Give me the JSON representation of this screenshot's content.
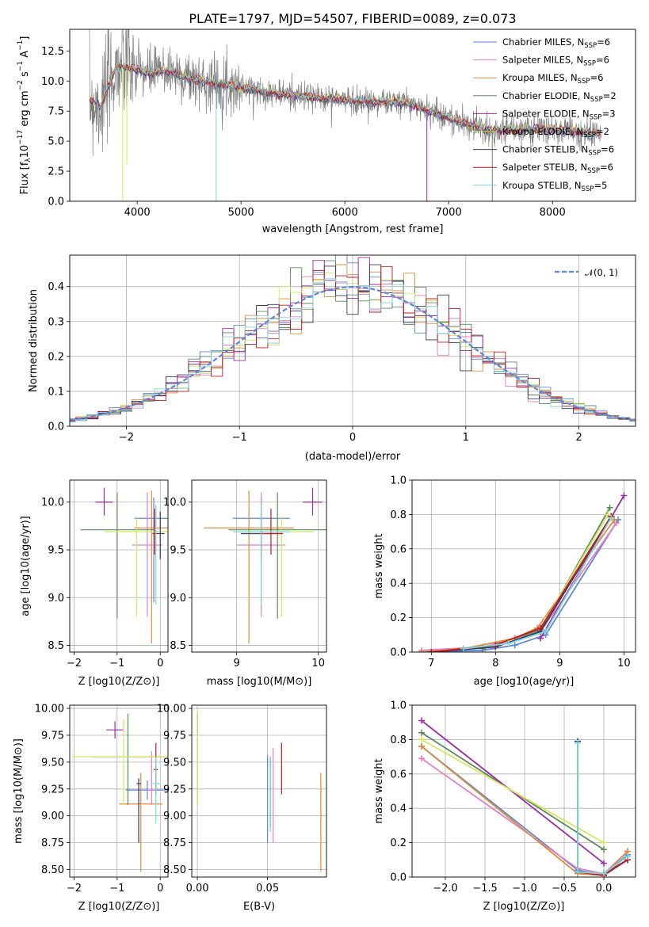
{
  "figure": {
    "title": "PLATE=1797, MJD=54507, FIBERID=0089, z=0.073"
  },
  "colors": {
    "series": [
      "#5b87d6",
      "#e27fc4",
      "#e08c3a",
      "#5c8a5c",
      "#9b2ba8",
      "#d3e85a",
      "#3a3a5a",
      "#c9181c",
      "#7dd5dc"
    ],
    "data": "#808080",
    "normal": "#5b87d6"
  },
  "legend": [
    {
      "label": "Chabrier MILES, N",
      "sub": "SSP",
      "suffix": "=6"
    },
    {
      "label": "Salpeter MILES, N",
      "sub": "SSP",
      "suffix": "=6"
    },
    {
      "label": "Kroupa MILES, N",
      "sub": "SSP",
      "suffix": "=6"
    },
    {
      "label": "Chabrier ELODIE, N",
      "sub": "SSP",
      "suffix": "=2"
    },
    {
      "label": "Salpeter ELODIE, N",
      "sub": "SSP",
      "suffix": "=3"
    },
    {
      "label": "Kroupa ELODIE, N",
      "sub": "SSP",
      "suffix": "=2"
    },
    {
      "label": "Chabrier STELIB, N",
      "sub": "SSP",
      "suffix": "=6"
    },
    {
      "label": "Salpeter STELIB, N",
      "sub": "SSP",
      "suffix": "=6"
    },
    {
      "label": "Kroupa STELIB, N",
      "sub": "SSP",
      "suffix": "=5"
    }
  ],
  "chart_data": [
    {
      "id": "spectrum",
      "type": "line",
      "xlabel": "wavelength [Angstrom, rest frame]",
      "ylabel": "Flux [f",
      "ylabel_parts": {
        "a": "Flux [f",
        "sub": "λ",
        "b": "10",
        "sup": "−17",
        "c": " erg cm",
        "sup2": "−2",
        "d": " s",
        "sup3": "−1",
        "e": " A",
        "sup4": "−1",
        "f": "]"
      },
      "xlim": [
        3350,
        8800
      ],
      "ylim": [
        0,
        14.3
      ],
      "xticks": [
        4000,
        5000,
        6000,
        7000,
        8000
      ],
      "yticks": [
        0.0,
        2.5,
        5.0,
        7.5,
        10.0,
        12.5
      ],
      "ytick_labels": [
        "0.0",
        "2.5",
        "5.0",
        "7.5",
        "10.0",
        "12.5"
      ],
      "model_trend": [
        [
          3540,
          8.4
        ],
        [
          3650,
          7.9
        ],
        [
          3800,
          11.2
        ],
        [
          3950,
          11.1
        ],
        [
          4100,
          10.6
        ],
        [
          4300,
          10.9
        ],
        [
          4500,
          10.2
        ],
        [
          4700,
          9.9
        ],
        [
          5000,
          9.5
        ],
        [
          5300,
          9.0
        ],
        [
          5600,
          8.7
        ],
        [
          5900,
          8.5
        ],
        [
          6200,
          8.3
        ],
        [
          6600,
          8.2
        ],
        [
          6800,
          7.6
        ],
        [
          7100,
          6.6
        ],
        [
          7400,
          5.9
        ],
        [
          7800,
          6.0
        ],
        [
          8200,
          5.8
        ],
        [
          8470,
          5.6
        ]
      ],
      "data_range": [
        3540,
        8470
      ]
    },
    {
      "id": "residuals",
      "type": "histogram",
      "xlabel": "(data-model)/error",
      "ylabel": "Normed distribution",
      "xlim": [
        -2.5,
        2.5
      ],
      "ylim": [
        0,
        0.49
      ],
      "xticks": [
        -2,
        -1,
        0,
        1,
        2
      ],
      "xtick_labels": [
        "−2",
        "−1",
        "0",
        "1",
        "2"
      ],
      "yticks": [
        0.0,
        0.1,
        0.2,
        0.3,
        0.4
      ],
      "ytick_labels": [
        "0.0",
        "0.1",
        "0.2",
        "0.3",
        "0.4"
      ],
      "reference": {
        "name": "𝒩(0, 1)",
        "mu": 0,
        "sigma": 1
      },
      "bin_width": 0.1
    },
    {
      "id": "age-vs-Z",
      "type": "scatter",
      "xlabel": "Z [log10(Z/Z⊙)]",
      "ylabel": "age  [log10(age/yr)]",
      "xlim": [
        -2.1,
        0.18
      ],
      "ylim": [
        8.43,
        10.23
      ],
      "xticks": [
        -2,
        -1,
        0
      ],
      "xtick_labels": [
        "−2",
        "−1",
        "0"
      ],
      "yticks": [
        8.5,
        9.0,
        9.5,
        10.0
      ],
      "ytick_labels": [
        "8.5",
        "9.0",
        "9.5",
        "10.0"
      ],
      "points": [
        {
          "x": -0.15,
          "xerr": 0.45,
          "y": 9.83,
          "ylo": 8.95,
          "yhi": 10.05
        },
        {
          "x": -0.3,
          "xerr": 0.35,
          "y": 9.55,
          "ylo": 8.8,
          "yhi": 10.1
        },
        {
          "x": -0.2,
          "xerr": 0.4,
          "y": 9.73,
          "ylo": 8.52,
          "yhi": 10.12
        },
        {
          "x": -1.0,
          "xerr": 0.85,
          "y": 9.71,
          "ylo": 8.78,
          "yhi": 10.1
        },
        {
          "x": -1.3,
          "xerr": 0.2,
          "y": 10.0,
          "ylo": 9.86,
          "yhi": 10.15
        },
        {
          "x": -0.55,
          "xerr": 0.75,
          "y": 9.69,
          "ylo": 8.8,
          "yhi": 9.85
        },
        {
          "x": 0.0,
          "xerr": 0.1,
          "y": 9.67,
          "ylo": 9.4,
          "yhi": 9.9
        },
        {
          "x": -0.13,
          "xerr": 0.05,
          "y": 9.67,
          "ylo": 9.45,
          "yhi": 9.93
        },
        {
          "x": -0.1,
          "xerr": 0.05,
          "y": 9.69,
          "ylo": 8.93,
          "yhi": 9.97
        }
      ]
    },
    {
      "id": "age-vs-mass",
      "type": "scatter",
      "xlabel": "mass [log10(M/M⊙)]",
      "ylabel": "",
      "xlim": [
        8.45,
        10.1
      ],
      "ylim": [
        8.43,
        10.23
      ],
      "xticks": [
        9,
        10
      ],
      "xtick_labels": [
        "9",
        "10"
      ],
      "yticks": [
        8.5,
        9.0,
        9.5,
        10.0
      ],
      "ytick_labels": [
        "8.5",
        "9.0",
        "9.5",
        "10.0"
      ],
      "points": [
        {
          "x": 9.3,
          "xerr": 0.35,
          "y": 9.83,
          "ylo": 8.95,
          "yhi": 10.05
        },
        {
          "x": 9.3,
          "xerr": 0.3,
          "y": 9.55,
          "ylo": 8.8,
          "yhi": 10.1
        },
        {
          "x": 9.15,
          "xerr": 0.55,
          "y": 9.73,
          "ylo": 8.52,
          "yhi": 10.12
        },
        {
          "x": 9.5,
          "xerr": 0.6,
          "y": 9.71,
          "ylo": 8.78,
          "yhi": 10.1
        },
        {
          "x": 9.93,
          "xerr": 0.12,
          "y": 10.0,
          "ylo": 9.86,
          "yhi": 10.15
        },
        {
          "x": 9.55,
          "xerr": 0.4,
          "y": 9.69,
          "ylo": 8.8,
          "yhi": 9.85
        },
        {
          "x": 9.3,
          "xerr": 0.25,
          "y": 9.67,
          "ylo": 9.4,
          "yhi": 9.9
        },
        {
          "x": 9.42,
          "xerr": 0.15,
          "y": 9.67,
          "ylo": 9.45,
          "yhi": 9.93
        },
        {
          "x": 9.3,
          "xerr": 0.35,
          "y": 9.69,
          "ylo": 8.93,
          "yhi": 9.97
        }
      ]
    },
    {
      "id": "weight-vs-age",
      "type": "line",
      "xlabel": "age  [log10(age/yr)]",
      "ylabel": "mass weight",
      "xlim": [
        6.7,
        10.18
      ],
      "ylim": [
        0,
        1.0
      ],
      "xticks": [
        7,
        8,
        9,
        10
      ],
      "xtick_labels": [
        "7",
        "8",
        "9",
        "10"
      ],
      "yticks": [
        0.0,
        0.2,
        0.4,
        0.6,
        0.8,
        1.0
      ],
      "ytick_labels": [
        "0.0",
        "0.2",
        "0.4",
        "0.6",
        "0.8",
        "1.0"
      ],
      "series": [
        {
          "x": [
            6.85,
            7.8,
            8.3,
            8.78,
            9.91
          ],
          "y": [
            0.0,
            0.01,
            0.04,
            0.1,
            0.77
          ]
        },
        {
          "x": [
            6.85,
            7.8,
            8.3,
            8.7,
            9.88
          ],
          "y": [
            0.01,
            0.03,
            0.08,
            0.12,
            0.75
          ]
        },
        {
          "x": [
            6.85,
            7.5,
            8.3,
            8.65,
            9.85
          ],
          "y": [
            0.0,
            0.02,
            0.08,
            0.14,
            0.77
          ]
        },
        {
          "x": [
            7.8,
            8.7,
            9.78
          ],
          "y": [
            0.02,
            0.13,
            0.84
          ]
        },
        {
          "x": [
            8.7,
            10.0
          ],
          "y": [
            0.08,
            0.91
          ]
        },
        {
          "x": [
            8.8,
            9.75
          ],
          "y": [
            0.2,
            0.8
          ]
        },
        {
          "x": [
            7.0,
            8.0,
            8.7,
            9.8
          ],
          "y": [
            0.0,
            0.03,
            0.12,
            0.79
          ]
        },
        {
          "x": [
            7.0,
            8.0,
            8.7,
            9.8
          ],
          "y": [
            0.0,
            0.04,
            0.14,
            0.79
          ]
        },
        {
          "x": [
            7.5,
            8.2,
            8.78,
            9.8
          ],
          "y": [
            0.02,
            0.05,
            0.12,
            0.78
          ]
        }
      ]
    },
    {
      "id": "mass-vs-Z",
      "type": "scatter",
      "xlabel": "Z [log10(Z/Z⊙)]",
      "ylabel": "mass [log10(M/M⊙)]",
      "xlim": [
        -2.1,
        0.18
      ],
      "ylim": [
        8.43,
        10.03
      ],
      "xticks": [
        -2,
        -1,
        0
      ],
      "xtick_labels": [
        "−2",
        "−1",
        "0"
      ],
      "yticks": [
        8.5,
        8.75,
        9.0,
        9.25,
        9.5,
        9.75,
        10.0
      ],
      "ytick_labels": [
        "8.50",
        "8.75",
        "9.00",
        "9.25",
        "9.50",
        "9.75",
        "10.00"
      ],
      "points": [
        {
          "x": -0.3,
          "xerr": 0.5,
          "y": 9.24,
          "ylo": 9.15,
          "yhi": 9.33
        },
        {
          "x": -0.2,
          "xerr": 0.1,
          "y": 9.24,
          "ylo": 9.1,
          "yhi": 9.6
        },
        {
          "x": -0.45,
          "xerr": 0.5,
          "y": 9.11,
          "ylo": 8.48,
          "yhi": 9.4
        },
        {
          "x": -0.75,
          "xerr": 0.85,
          "y": 9.55,
          "ylo": 9.1,
          "yhi": 9.95
        },
        {
          "x": -1.05,
          "xerr": 0.2,
          "y": 9.8,
          "ylo": 9.72,
          "yhi": 9.88
        },
        {
          "x": -0.85,
          "xerr": 1.2,
          "y": 9.55,
          "ylo": 9.1,
          "yhi": 9.9
        },
        {
          "x": -0.5,
          "xerr": 0.05,
          "y": 9.3,
          "ylo": 8.75,
          "yhi": 9.35
        },
        {
          "x": -0.1,
          "xerr": 0.05,
          "y": 9.43,
          "ylo": 9.2,
          "yhi": 9.68
        },
        {
          "x": -0.1,
          "xerr": 0.1,
          "y": 9.3,
          "ylo": 8.93,
          "yhi": 9.55
        }
      ]
    },
    {
      "id": "mass-vs-EBV",
      "type": "scatter",
      "xlabel": "E(B-V)",
      "ylabel": "",
      "xlim": [
        -0.004,
        0.092
      ],
      "ylim": [
        8.43,
        10.03
      ],
      "xticks": [
        0.0,
        0.05
      ],
      "xtick_labels": [
        "0.00",
        "0.05"
      ],
      "yticks": [
        8.5,
        8.75,
        9.0,
        9.25,
        9.5,
        9.75,
        10.0
      ],
      "ytick_labels": [
        "8.50",
        "8.75",
        "9.00",
        "9.25",
        "9.50",
        "9.75",
        "10.00"
      ],
      "points": [
        {
          "x": 0.05,
          "y": 9.2,
          "ylo": 8.75,
          "yhi": 9.57
        },
        {
          "x": 0.054,
          "y": 9.2,
          "ylo": 8.75,
          "yhi": 9.63
        },
        {
          "x": 0.088,
          "y": 8.95,
          "ylo": 8.48,
          "yhi": 9.4
        },
        {
          "x": 0.0,
          "y": 9.55,
          "ylo": 9.1,
          "yhi": 9.95
        },
        {
          "x": 0.0,
          "y": 9.85,
          "ylo": 9.75,
          "yhi": 9.95
        },
        {
          "x": 0.0,
          "y": 9.55,
          "ylo": 9.1,
          "yhi": 9.99
        },
        {
          "x": 0.052,
          "y": 9.2,
          "ylo": 8.9,
          "yhi": 9.55
        },
        {
          "x": 0.06,
          "y": 9.43,
          "ylo": 9.2,
          "yhi": 9.68
        },
        {
          "x": 0.052,
          "y": 9.2,
          "ylo": 8.85,
          "yhi": 9.55
        }
      ]
    },
    {
      "id": "weight-vs-Z",
      "type": "line",
      "xlabel": "Z [log10(Z/Z⊙)]",
      "ylabel": "mass weight",
      "xlim": [
        -2.42,
        0.4
      ],
      "ylim": [
        0,
        1.0
      ],
      "xticks": [
        -2.0,
        -1.5,
        -1.0,
        -0.5,
        0.0
      ],
      "xtick_labels": [
        "−2.0",
        "−1.5",
        "−1.0",
        "−0.5",
        "0.0"
      ],
      "yticks": [
        0.0,
        0.2,
        0.4,
        0.6,
        0.8,
        1.0
      ],
      "ytick_labels": [
        "0.0",
        "0.2",
        "0.4",
        "0.6",
        "0.8",
        "1.0"
      ],
      "series": [
        {
          "x": [
            -2.3,
            -0.33,
            0.0,
            0.3
          ],
          "y": [
            0.76,
            0.04,
            0.01,
            0.13
          ]
        },
        {
          "x": [
            -2.3,
            -0.33,
            0.0,
            0.3
          ],
          "y": [
            0.69,
            0.05,
            0.02,
            0.15
          ]
        },
        {
          "x": [
            -2.3,
            -0.33,
            0.0,
            0.3
          ],
          "y": [
            0.76,
            0.02,
            0.01,
            0.15
          ]
        },
        {
          "x": [
            -2.3,
            0.0
          ],
          "y": [
            0.84,
            0.16
          ]
        },
        {
          "x": [
            -2.3,
            0.0
          ],
          "y": [
            0.91,
            0.08
          ]
        },
        {
          "x": [
            -2.3,
            0.0
          ],
          "y": [
            0.8,
            0.2
          ]
        },
        {
          "x": [
            -0.33,
            -0.33,
            0.0,
            0.3
          ],
          "y": [
            0.79,
            0.03,
            0.02,
            0.1
          ]
        },
        {
          "x": [
            -0.33,
            0.0,
            0.3
          ],
          "y": [
            0.03,
            0.01,
            0.1
          ]
        },
        {
          "x": [
            -0.33,
            -0.33,
            0.0,
            0.3
          ],
          "y": [
            0.78,
            0.03,
            0.02,
            0.12
          ]
        }
      ]
    }
  ]
}
